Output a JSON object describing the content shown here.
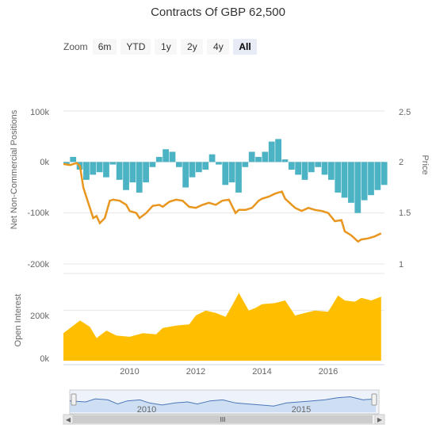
{
  "title": "Contracts Of GBP 62,500",
  "zoom": {
    "label": "Zoom",
    "buttons": [
      "6m",
      "YTD",
      "1y",
      "2y",
      "4y",
      "All"
    ],
    "active": "All"
  },
  "colors": {
    "positions": "#4bb3c4",
    "price": "#e8961e",
    "open_interest": "#ffbf00",
    "navigator_fill": "#c5d9f1",
    "navigator_line": "#4a76b8"
  },
  "chart_data": [
    {
      "type": "area",
      "name": "net-positions-panel",
      "ylabel": "Net Non-Commercial Positions",
      "y2label": "Price",
      "yticks": [
        "100k",
        "0k",
        "-100k",
        "-200k"
      ],
      "ylim": [
        -200000,
        100000
      ],
      "y2ticks": [
        "2.5",
        "2",
        "1.5",
        "1"
      ],
      "y2lim": [
        1,
        2.5
      ],
      "series": [
        {
          "type": "column",
          "x": [
            2008.0,
            2008.2,
            2008.4,
            2008.6,
            2008.8,
            2009.0,
            2009.2,
            2009.4,
            2009.6,
            2009.8,
            2010.0,
            2010.2,
            2010.4,
            2010.6,
            2010.8,
            2011.0,
            2011.2,
            2011.4,
            2011.6,
            2011.8,
            2012.0,
            2012.2,
            2012.4,
            2012.6,
            2012.8,
            2013.0,
            2013.2,
            2013.4,
            2013.6,
            2013.8,
            2014.0,
            2014.2,
            2014.4,
            2014.6,
            2014.8,
            2015.0,
            2015.2,
            2015.4,
            2015.6,
            2015.8,
            2016.0,
            2016.2,
            2016.4,
            2016.6,
            2016.8,
            2017.0,
            2017.2,
            2017.4,
            2017.6
          ],
          "values": [
            -5000,
            10000,
            -15000,
            -35000,
            -25000,
            -20000,
            -30000,
            -5000,
            -35000,
            -55000,
            -40000,
            -60000,
            -40000,
            -10000,
            10000,
            25000,
            20000,
            -10000,
            -50000,
            -30000,
            -20000,
            -15000,
            15000,
            -5000,
            -45000,
            -40000,
            -60000,
            -10000,
            20000,
            10000,
            20000,
            40000,
            45000,
            5000,
            -15000,
            -25000,
            -35000,
            -20000,
            -10000,
            -25000,
            -35000,
            -60000,
            -70000,
            -80000,
            -100000,
            -75000,
            -65000,
            -55000,
            -45000
          ]
        },
        {
          "name": "Price",
          "type": "line",
          "axis": "right",
          "x": [
            2008.0,
            2008.2,
            2008.4,
            2008.5,
            2008.6,
            2008.75,
            2008.9,
            2009.0,
            2009.1,
            2009.25,
            2009.4,
            2009.5,
            2009.7,
            2009.9,
            2010.0,
            2010.2,
            2010.3,
            2010.5,
            2010.7,
            2010.9,
            2011.0,
            2011.2,
            2011.4,
            2011.6,
            2011.8,
            2012.0,
            2012.2,
            2012.4,
            2012.6,
            2012.8,
            2013.0,
            2013.2,
            2013.3,
            2013.5,
            2013.7,
            2013.9,
            2014.0,
            2014.2,
            2014.4,
            2014.6,
            2014.7,
            2014.9,
            2015.0,
            2015.2,
            2015.4,
            2015.6,
            2015.8,
            2016.0,
            2016.2,
            2016.4,
            2016.5,
            2016.7,
            2016.9,
            2017.0,
            2017.2,
            2017.4,
            2017.6
          ],
          "values": [
            1.98,
            1.97,
            1.99,
            1.96,
            1.75,
            1.6,
            1.45,
            1.47,
            1.4,
            1.45,
            1.62,
            1.63,
            1.62,
            1.58,
            1.52,
            1.5,
            1.45,
            1.5,
            1.57,
            1.58,
            1.56,
            1.61,
            1.63,
            1.62,
            1.56,
            1.55,
            1.58,
            1.6,
            1.58,
            1.62,
            1.63,
            1.5,
            1.53,
            1.53,
            1.55,
            1.62,
            1.64,
            1.66,
            1.69,
            1.71,
            1.64,
            1.58,
            1.55,
            1.52,
            1.55,
            1.53,
            1.52,
            1.5,
            1.42,
            1.43,
            1.32,
            1.28,
            1.22,
            1.24,
            1.25,
            1.27,
            1.3
          ]
        }
      ]
    },
    {
      "type": "area",
      "name": "open-interest-panel",
      "ylabel": "Open Interest",
      "yticks": [
        "200k",
        "0k"
      ],
      "ylim": [
        0,
        300000
      ],
      "x": [
        2008.0,
        2008.3,
        2008.5,
        2008.8,
        2009.0,
        2009.3,
        2009.6,
        2010.0,
        2010.4,
        2010.8,
        2011.0,
        2011.4,
        2011.8,
        2012.0,
        2012.3,
        2012.6,
        2012.9,
        2013.1,
        2013.3,
        2013.6,
        2013.8,
        2014.0,
        2014.4,
        2014.7,
        2014.8,
        2015.0,
        2015.3,
        2015.6,
        2016.0,
        2016.3,
        2016.5,
        2016.8,
        2017.0,
        2017.3,
        2017.6
      ],
      "values": [
        110000,
        140000,
        160000,
        135000,
        90000,
        120000,
        100000,
        95000,
        110000,
        105000,
        130000,
        140000,
        145000,
        180000,
        200000,
        190000,
        175000,
        220000,
        270000,
        200000,
        210000,
        225000,
        230000,
        240000,
        220000,
        180000,
        190000,
        200000,
        195000,
        260000,
        240000,
        235000,
        250000,
        240000,
        255000
      ]
    },
    {
      "type": "line",
      "name": "navigator",
      "xticks": [
        "2010",
        "2015"
      ],
      "x": [
        2008.0,
        2008.5,
        2008.8,
        2009.2,
        2009.5,
        2009.8,
        2010.2,
        2010.5,
        2010.9,
        2011.3,
        2011.7,
        2012.0,
        2012.4,
        2012.8,
        2013.2,
        2013.6,
        2014.0,
        2014.4,
        2014.8,
        2015.2,
        2015.6,
        2016.0,
        2016.4,
        2016.8,
        2017.2,
        2017.6
      ],
      "values": [
        0.55,
        0.5,
        0.65,
        0.6,
        0.4,
        0.55,
        0.6,
        0.45,
        0.35,
        0.45,
        0.5,
        0.4,
        0.55,
        0.6,
        0.45,
        0.4,
        0.35,
        0.3,
        0.45,
        0.5,
        0.55,
        0.6,
        0.7,
        0.75,
        0.6,
        0.65
      ]
    }
  ],
  "x_axis": {
    "ticks": [
      "2010",
      "2012",
      "2014",
      "2016"
    ],
    "xlim": [
      2008,
      2017.7
    ]
  },
  "scrollbar": {
    "grip": "III"
  }
}
